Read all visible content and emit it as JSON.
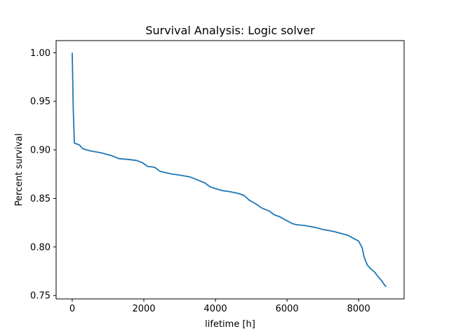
{
  "chart_data": {
    "type": "line",
    "title": "Survival Analysis: Logic solver",
    "xlabel": "lifetime [h]",
    "ylabel": "Percent survival",
    "xlim": [
      -450,
      9270
    ],
    "ylim": [
      0.7465,
      1.0125
    ],
    "xticks": [
      0,
      2000,
      4000,
      6000,
      8000
    ],
    "xtick_labels": [
      "0",
      "2000",
      "4000",
      "6000",
      "8000"
    ],
    "yticks": [
      0.75,
      0.8,
      0.85,
      0.9,
      0.95,
      1.0
    ],
    "ytick_labels": [
      "0.75",
      "0.80",
      "0.85",
      "0.90",
      "0.95",
      "1.00"
    ],
    "grid": false,
    "series": [
      {
        "color": "#1f77b4",
        "x": [
          0,
          30,
          60,
          200,
          300,
          500,
          800,
          1100,
          1300,
          1600,
          1800,
          1950,
          2100,
          2300,
          2450,
          2550,
          2800,
          3000,
          3300,
          3500,
          3700,
          3850,
          4000,
          4200,
          4400,
          4650,
          4800,
          4950,
          5100,
          5300,
          5500,
          5650,
          5800,
          6000,
          6150,
          6250,
          6500,
          6800,
          7000,
          7300,
          7500,
          7700,
          7800,
          7900,
          8000,
          8100,
          8150,
          8200,
          8250,
          8350,
          8450,
          8550,
          8650,
          8720,
          8770
        ],
        "y": [
          1.0,
          0.94,
          0.907,
          0.905,
          0.901,
          0.899,
          0.897,
          0.894,
          0.891,
          0.89,
          0.889,
          0.887,
          0.883,
          0.882,
          0.878,
          0.877,
          0.875,
          0.874,
          0.872,
          0.869,
          0.866,
          0.862,
          0.86,
          0.858,
          0.857,
          0.855,
          0.853,
          0.848,
          0.845,
          0.84,
          0.837,
          0.833,
          0.831,
          0.827,
          0.824,
          0.823,
          0.822,
          0.82,
          0.818,
          0.816,
          0.814,
          0.812,
          0.81,
          0.808,
          0.806,
          0.799,
          0.79,
          0.785,
          0.781,
          0.777,
          0.774,
          0.769,
          0.765,
          0.761,
          0.759
        ]
      }
    ]
  }
}
